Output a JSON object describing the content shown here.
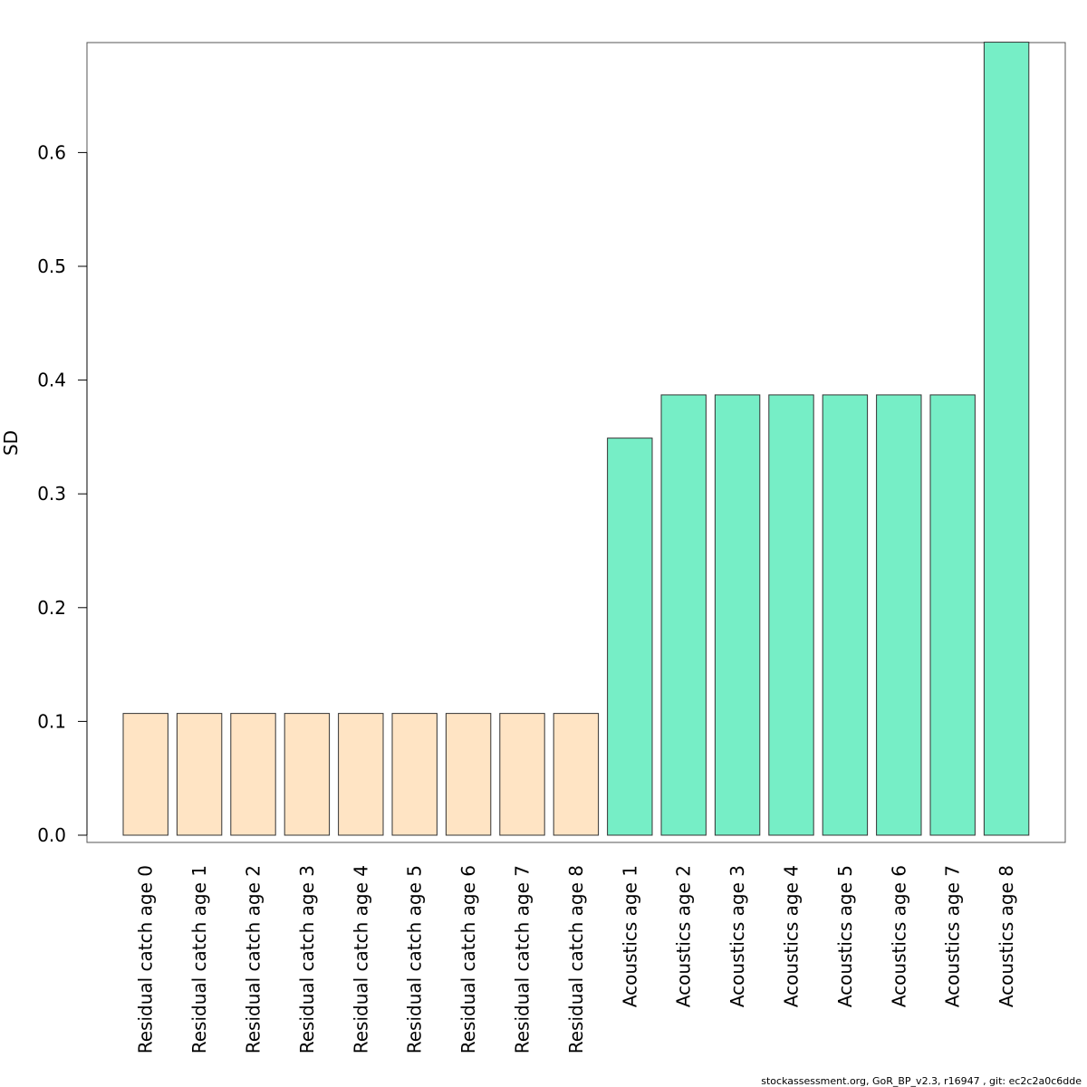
{
  "chart_data": {
    "type": "bar",
    "title": "",
    "xlabel": "",
    "ylabel": "SD",
    "ylim": [
      0,
      0.7
    ],
    "yticks": [
      0.0,
      0.1,
      0.2,
      0.3,
      0.4,
      0.5,
      0.6
    ],
    "ytick_labels": [
      "0.0",
      "0.1",
      "0.2",
      "0.3",
      "0.4",
      "0.5",
      "0.6"
    ],
    "grid": false,
    "categories": [
      "Residual catch age 0",
      "Residual catch age 1",
      "Residual catch age 2",
      "Residual catch age 3",
      "Residual catch age 4",
      "Residual catch age 5",
      "Residual catch age 6",
      "Residual catch age 7",
      "Residual catch age 8",
      "Acoustics age 1",
      "Acoustics age 2",
      "Acoustics age 3",
      "Acoustics age 4",
      "Acoustics age 5",
      "Acoustics age 6",
      "Acoustics age 7",
      "Acoustics age 8"
    ],
    "values": [
      0.107,
      0.107,
      0.107,
      0.107,
      0.107,
      0.107,
      0.107,
      0.107,
      0.107,
      0.349,
      0.387,
      0.387,
      0.387,
      0.387,
      0.387,
      0.387,
      0.697
    ],
    "groups": [
      {
        "name": "Residual catch",
        "color": "#FFE4C4"
      },
      {
        "name": "Acoustics",
        "color": "#76EEC6"
      }
    ],
    "bar_group_index": [
      0,
      0,
      0,
      0,
      0,
      0,
      0,
      0,
      0,
      1,
      1,
      1,
      1,
      1,
      1,
      1,
      1
    ]
  },
  "footer": "stockassessment.org, GoR_BP_v2.3, r16947 , git: ec2c2a0c6dde"
}
